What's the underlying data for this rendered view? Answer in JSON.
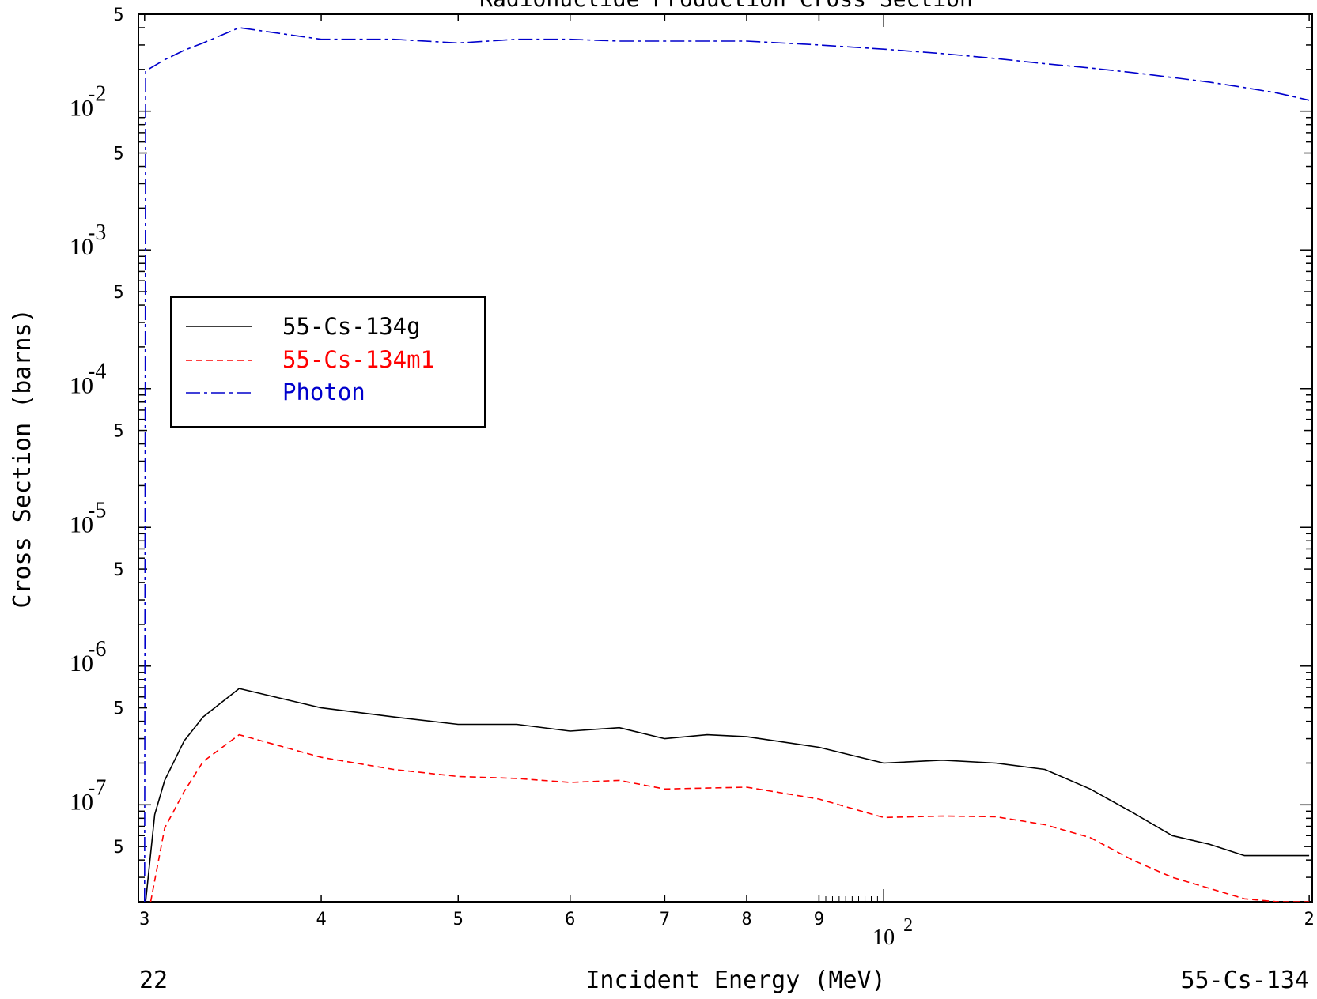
{
  "chart_data": {
    "type": "line",
    "title": "Radionuclide Production Cross Section",
    "xlabel": "Incident Energy (MeV)",
    "ylabel": "Cross Section (barns)",
    "footer_left": "22",
    "footer_right": "55-Cs-134",
    "x_scale": "log",
    "y_scale": "log",
    "xlim": [
      29.7,
      201
    ],
    "ylim": [
      2e-08,
      0.05
    ],
    "grid": false,
    "legend_position": "upper-left",
    "x_ticks": [
      {
        "value": 30,
        "label": "3"
      },
      {
        "value": 40,
        "label": "4"
      },
      {
        "value": 50,
        "label": "5"
      },
      {
        "value": 60,
        "label": "6"
      },
      {
        "value": 70,
        "label": "7"
      },
      {
        "value": 80,
        "label": "8"
      },
      {
        "value": 90,
        "label": "9"
      },
      {
        "value": 100,
        "label": "10",
        "exp": "2"
      },
      {
        "value": 200,
        "label": "2"
      }
    ],
    "y_ticks": [
      {
        "value": 0.05,
        "label": "5"
      },
      {
        "value": 0.01,
        "label": "10",
        "exp": "-2"
      },
      {
        "value": 0.005,
        "label": "5"
      },
      {
        "value": 0.001,
        "label": "10",
        "exp": "-3"
      },
      {
        "value": 0.0005,
        "label": "5"
      },
      {
        "value": 0.0001,
        "label": "10",
        "exp": "-4"
      },
      {
        "value": 5e-05,
        "label": "5"
      },
      {
        "value": 1e-05,
        "label": "10",
        "exp": "-5"
      },
      {
        "value": 5e-06,
        "label": "5"
      },
      {
        "value": 1e-06,
        "label": "10",
        "exp": "-6"
      },
      {
        "value": 5e-07,
        "label": "5"
      },
      {
        "value": 1e-07,
        "label": "10",
        "exp": "-7"
      },
      {
        "value": 5e-08,
        "label": "5"
      }
    ],
    "series": [
      {
        "name": "55-Cs-134g",
        "color": "#000000",
        "dash": "solid",
        "x": [
          30.05,
          30.5,
          31,
          32,
          33,
          35,
          40,
          45,
          50,
          55,
          60,
          65,
          70,
          75,
          80,
          90,
          100,
          110,
          120,
          130,
          140,
          150,
          160,
          170,
          180,
          190,
          200
        ],
        "y": [
          2e-08,
          8.5e-08,
          1.5e-07,
          2.9e-07,
          4.3e-07,
          6.9e-07,
          5e-07,
          4.3e-07,
          3.8e-07,
          3.8e-07,
          3.4e-07,
          3.6e-07,
          3e-07,
          3.2e-07,
          3.1e-07,
          2.6e-07,
          2e-07,
          2.1e-07,
          2e-07,
          1.8e-07,
          1.3e-07,
          8.8e-08,
          6e-08,
          5.2e-08,
          4.3e-08,
          4.3e-08,
          4.3e-08
        ]
      },
      {
        "name": "55-Cs-134m1",
        "color": "#ff0000",
        "dash": "dashed",
        "x": [
          30.3,
          31,
          32,
          33,
          35,
          40,
          45,
          50,
          55,
          60,
          65,
          70,
          75,
          80,
          90,
          100,
          110,
          120,
          130,
          140,
          150,
          160,
          170,
          180,
          190,
          200
        ],
        "y": [
          2e-08,
          6.8e-08,
          1.25e-07,
          2.05e-07,
          3.2e-07,
          2.2e-07,
          1.8e-07,
          1.6e-07,
          1.55e-07,
          1.45e-07,
          1.5e-07,
          1.3e-07,
          1.32e-07,
          1.34e-07,
          1.1e-07,
          8.1e-08,
          8.3e-08,
          8.2e-08,
          7.2e-08,
          5.8e-08,
          4e-08,
          3e-08,
          2.5e-08,
          2.1e-08,
          2e-08,
          2e-08
        ]
      },
      {
        "name": "Photon",
        "color": "#0000cc",
        "dash": "dashdot",
        "x": [
          30,
          30.05,
          31,
          32,
          33,
          35,
          40,
          45,
          50,
          55,
          60,
          65,
          70,
          75,
          80,
          90,
          100,
          110,
          120,
          130,
          140,
          150,
          160,
          170,
          180,
          190,
          200
        ],
        "y": [
          2e-08,
          0.0195,
          0.0235,
          0.0275,
          0.031,
          0.04,
          0.033,
          0.033,
          0.031,
          0.033,
          0.033,
          0.032,
          0.032,
          0.032,
          0.032,
          0.03,
          0.028,
          0.026,
          0.024,
          0.022,
          0.0205,
          0.019,
          0.0175,
          0.0162,
          0.0148,
          0.0135,
          0.012
        ]
      }
    ]
  }
}
